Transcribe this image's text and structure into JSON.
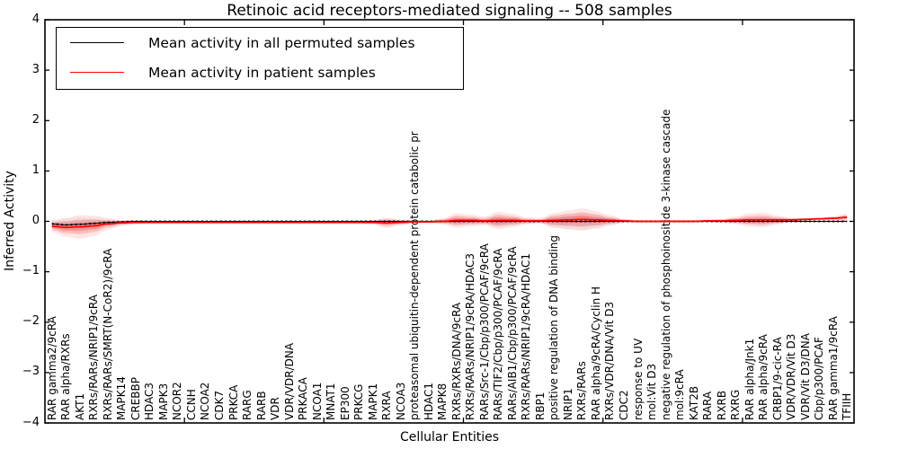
{
  "title": "Retinoic acid receptors-mediated signaling -- 508 samples",
  "legend": {
    "items": [
      {
        "label": "Mean activity in all permuted samples",
        "color": "#000000"
      },
      {
        "label": "Mean activity in patient samples",
        "color": "#ff0000"
      }
    ]
  },
  "chart_data": {
    "type": "line",
    "title": "Retinoic acid receptors-mediated signaling -- 508 samples",
    "xlabel": "Cellular Entities",
    "ylabel": "Inferred Activity",
    "ylim": [
      -4,
      4
    ],
    "ytick_labels": [
      "−4",
      "−3",
      "−2",
      "−1",
      "0",
      "1",
      "2",
      "3",
      "4"
    ],
    "ytick_values": [
      -4,
      -3,
      -2,
      -1,
      0,
      1,
      2,
      3,
      4
    ],
    "xticks_major": [
      10,
      20,
      30,
      40,
      50
    ],
    "grid": false,
    "legend_position": "upper left",
    "categories": [
      "RAR gamma2/9cRA",
      "RAR alpha/RXRs",
      "AKT1",
      "RXRs/RARs/NRIP1/9cRA",
      "RXRs/RARs/SMRT(N-CoR2)/9cRA",
      "MAPK14",
      "CREBBP",
      "HDAC3",
      "MAPK3",
      "NCOR2",
      "CCNH",
      "NCOA2",
      "CDK7",
      "PRKCA",
      "RARG",
      "RARB",
      "VDR",
      "VDR/VDR/DNA",
      "PRKACA",
      "NCOA1",
      "MNAT1",
      "EP300",
      "PRKCG",
      "MAPK1",
      "RXRA",
      "NCOA3",
      "proteasomal ubiquitin-dependent protein catabolic pr",
      "HDAC1",
      "MAPK8",
      "RXRs/RXRs/DNA/9cRA",
      "RXRs/RARs/NRIP1/9cRA/HDAC3",
      "RARs/Src-1/Cbp/p300/PCAF/9cRA",
      "RARs/TIF2/Cbp/p300/PCAF/9cRA",
      "RARs/AIB1/Cbp/p300/PCAF/9cRA",
      "RXRs/RARs/NRIP1/9cRA/HDAC1",
      "RBP1",
      "positive regulation of DNA binding",
      "NRIP1",
      "RXRs/RARs",
      "RAR alpha/9cRA/Cyclin H",
      "RXRs/VDR/DNA/Vit D3",
      "CDC2",
      "response to UV",
      "mol:Vit D3",
      "negative regulation of phosphoinositide 3-kinase cascade",
      "mol:9cRA",
      "KAT2B",
      "RARA",
      "RXRB",
      "RXRG",
      "RAR alpha/Jnk1",
      "RAR alpha/9cRA",
      "CRBP1/9-cic-RA",
      "VDR/VDR/Vit D3",
      "VDR/Vit D3/DNA",
      "Cbp/p300/PCAF",
      "RAR gamma1/9cRA",
      "TFIIH"
    ],
    "series": [
      {
        "name": "Mean activity in all permuted samples",
        "color": "#000000",
        "style": "solid-with-dotted-markers",
        "values": [
          -0.05,
          -0.07,
          -0.06,
          -0.04,
          -0.02,
          -0.01,
          0,
          0,
          0,
          0,
          0,
          0,
          0,
          0,
          0,
          0,
          0,
          0,
          0,
          0,
          0,
          0,
          0,
          0,
          0,
          0,
          0,
          0,
          0,
          0,
          0,
          0,
          0,
          0,
          0,
          0,
          0,
          0,
          0,
          0,
          0,
          0,
          0,
          0,
          0,
          0,
          0,
          0,
          0,
          0,
          0,
          0,
          0,
          0,
          0,
          0,
          0,
          0
        ]
      },
      {
        "name": "Mean activity in patient samples",
        "color": "#ff0000",
        "style": "solid",
        "values": [
          -0.1,
          -0.12,
          -0.11,
          -0.09,
          -0.05,
          -0.03,
          -0.02,
          -0.02,
          -0.02,
          -0.02,
          -0.02,
          -0.02,
          -0.02,
          -0.02,
          -0.02,
          -0.02,
          -0.02,
          -0.02,
          -0.02,
          -0.02,
          -0.02,
          -0.02,
          -0.02,
          -0.02,
          -0.03,
          -0.02,
          -0.01,
          -0.01,
          0.0,
          0.02,
          0.02,
          0.01,
          0.02,
          0.02,
          0.01,
          0.01,
          0.02,
          0.03,
          0.04,
          0.03,
          0.02,
          0.01,
          0.0,
          0.0,
          0.0,
          0.0,
          0.0,
          0.01,
          0.01,
          0.02,
          0.03,
          0.03,
          0.03,
          0.03,
          0.04,
          0.05,
          0.06,
          0.08
        ]
      }
    ],
    "bands": [
      {
        "series": "Mean activity in all permuted samples",
        "color": "#777777",
        "halfwidths": [
          0.05,
          0.08,
          0.09,
          0.07,
          0.04,
          0.02,
          0.015,
          0.015,
          0.015,
          0.015,
          0.015,
          0.015,
          0.015,
          0.015,
          0.015,
          0.015,
          0.015,
          0.015,
          0.015,
          0.015,
          0.015,
          0.015,
          0.015,
          0.02,
          0.04,
          0.02,
          0.015,
          0.015,
          0.03,
          0.06,
          0.05,
          0.04,
          0.08,
          0.06,
          0.03,
          0.03,
          0.08,
          0.1,
          0.12,
          0.09,
          0.05,
          0.02,
          0.015,
          0.015,
          0.015,
          0.015,
          0.015,
          0.015,
          0.02,
          0.03,
          0.05,
          0.06,
          0.04,
          0.02,
          0.015,
          0.015,
          0.015,
          0.015
        ]
      },
      {
        "series": "Mean activity in patient samples",
        "color": "#ff0000",
        "halfwidths": [
          0.08,
          0.13,
          0.16,
          0.14,
          0.08,
          0.04,
          0.03,
          0.02,
          0.02,
          0.02,
          0.02,
          0.02,
          0.02,
          0.02,
          0.02,
          0.02,
          0.02,
          0.02,
          0.02,
          0.02,
          0.02,
          0.02,
          0.02,
          0.03,
          0.07,
          0.04,
          0.02,
          0.02,
          0.04,
          0.1,
          0.08,
          0.06,
          0.12,
          0.09,
          0.05,
          0.04,
          0.1,
          0.13,
          0.15,
          0.12,
          0.07,
          0.03,
          0.02,
          0.02,
          0.02,
          0.02,
          0.02,
          0.02,
          0.03,
          0.05,
          0.09,
          0.1,
          0.06,
          0.03,
          0.02,
          0.02,
          0.03,
          0.05
        ]
      }
    ]
  }
}
